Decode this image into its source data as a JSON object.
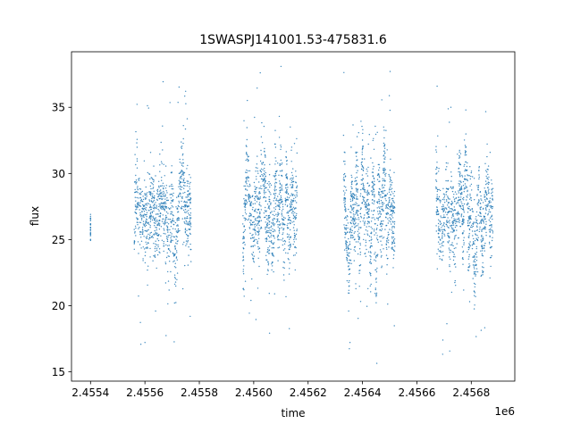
{
  "chart_data": {
    "type": "scatter",
    "title": "1SWASPJ141001.53-475831.6",
    "xlabel": "time",
    "ylabel": "flux",
    "x_offset_label": "1e6",
    "xlim": [
      2455330,
      2456960
    ],
    "ylim": [
      14.3,
      39.2
    ],
    "x_ticks": [
      2455400,
      2455600,
      2455800,
      2456000,
      2456200,
      2456400,
      2456600,
      2456800
    ],
    "x_tick_labels": [
      "2.4554",
      "2.4556",
      "2.4558",
      "2.4560",
      "2.4562",
      "2.4564",
      "2.4566",
      "2.4568"
    ],
    "y_ticks": [
      15,
      20,
      25,
      30,
      35
    ],
    "y_tick_labels": [
      "15",
      "20",
      "25",
      "30",
      "35"
    ],
    "grid": false,
    "legend": "none",
    "marker_color": "#1f77b4",
    "series": [
      {
        "segments": [
          {
            "x": [
              2455400,
              2455400
            ],
            "y": [
              25.8,
              27.0
            ]
          },
          {
            "x": [
              2455560,
              2455570,
              2455580,
              2455590,
              2455600,
              2455610,
              2455620,
              2455630,
              2455640,
              2455650,
              2455660,
              2455670,
              2455680,
              2455690,
              2455700,
              2455710,
              2455720,
              2455730,
              2455740,
              2455750,
              2455760,
              2455770
            ],
            "y": [
              26.0,
              28.8,
              26.3,
              27.2,
              27.0,
              26.4,
              27.8,
              27.2,
              26.0,
              26.8,
              28.5,
              27.0,
              26.6,
              25.2,
              27.6,
              23.2,
              25.8,
              29.6,
              30.3,
              26.6,
              27.2,
              26.4
            ]
          },
          {
            "x": [
              2455960,
              2455975,
              2455990,
              2456000,
              2456010,
              2456020,
              2456030,
              2456040,
              2456050,
              2456060,
              2456070,
              2456080,
              2456090,
              2456100,
              2456110,
              2456120,
              2456130,
              2456140,
              2456150,
              2456160
            ],
            "y": [
              23.8,
              30.4,
              26.6,
              25.3,
              28.0,
              26.2,
              31.0,
              30.0,
              25.0,
              27.6,
              23.5,
              29.8,
              26.5,
              30.2,
              24.2,
              29.0,
              25.2,
              29.4,
              26.4,
              28.2
            ]
          },
          {
            "x": [
              2456330,
              2456340,
              2456350,
              2456360,
              2456370,
              2456380,
              2456390,
              2456400,
              2456410,
              2456420,
              2456430,
              2456440,
              2456450,
              2456460,
              2456470,
              2456480,
              2456490,
              2456500,
              2456510,
              2456520
            ],
            "y": [
              30.6,
              25.6,
              22.8,
              28.2,
              26.5,
              29.2,
              24.0,
              31.0,
              26.0,
              28.5,
              23.4,
              30.5,
              22.2,
              29.5,
              25.5,
              31.6,
              24.8,
              28.6,
              26.3,
              25.8
            ]
          },
          {
            "x": [
              2456670,
              2456680,
              2456690,
              2456700,
              2456710,
              2456720,
              2456730,
              2456740,
              2456750,
              2456760,
              2456770,
              2456780,
              2456790,
              2456800,
              2456810,
              2456820,
              2456830,
              2456840,
              2456850,
              2456860,
              2456870,
              2456880
            ],
            "y": [
              29.5,
              26.5,
              25.0,
              27.0,
              28.5,
              25.0,
              27.2,
              25.5,
              28.0,
              29.6,
              26.0,
              31.5,
              24.5,
              28.5,
              23.2,
              25.0,
              29.0,
              24.0,
              27.5,
              29.8,
              25.5,
              28.0
            ]
          }
        ]
      }
    ]
  }
}
